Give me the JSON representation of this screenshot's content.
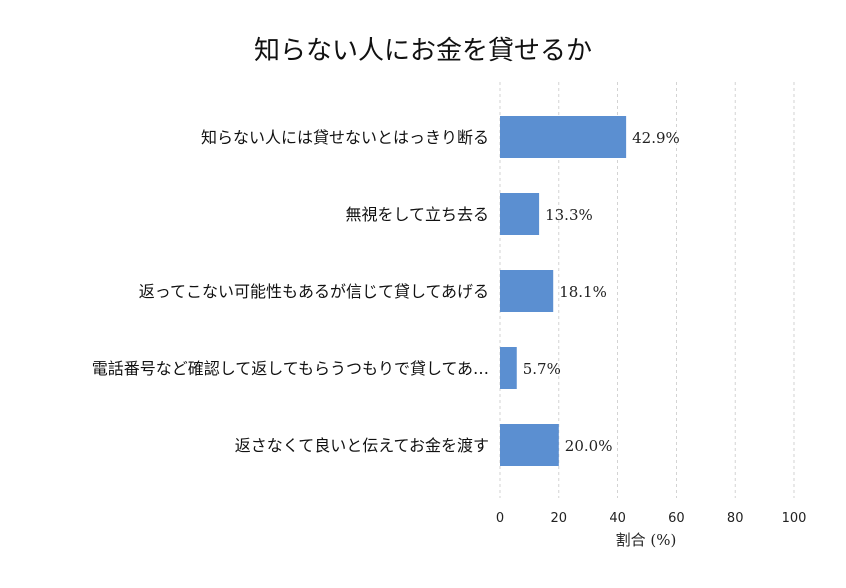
{
  "chart_data": {
    "type": "bar",
    "orientation": "horizontal",
    "title": "知らない人にお金を貸せるか",
    "xlabel": "割合 (%)",
    "ylabel": "",
    "xlim": [
      0,
      100
    ],
    "xticks": [
      0,
      20,
      40,
      60,
      80,
      100
    ],
    "grid": "vertical dashed",
    "bar_color": "#5b8fd1",
    "categories": [
      "知らない人には貸せないとはっきり断る",
      "無視をして立ち去る",
      "返ってこない可能性もあるが信じて貸してあげる",
      "電話番号など確認して返してもらうつもりで貸してあ…",
      "返さなくて良いと伝えてお金を渡す"
    ],
    "values": [
      42.9,
      13.3,
      18.1,
      5.7,
      20.0
    ],
    "value_labels": [
      "42.9%",
      "13.3%",
      "18.1%",
      "5.7%",
      "20.0%"
    ]
  }
}
